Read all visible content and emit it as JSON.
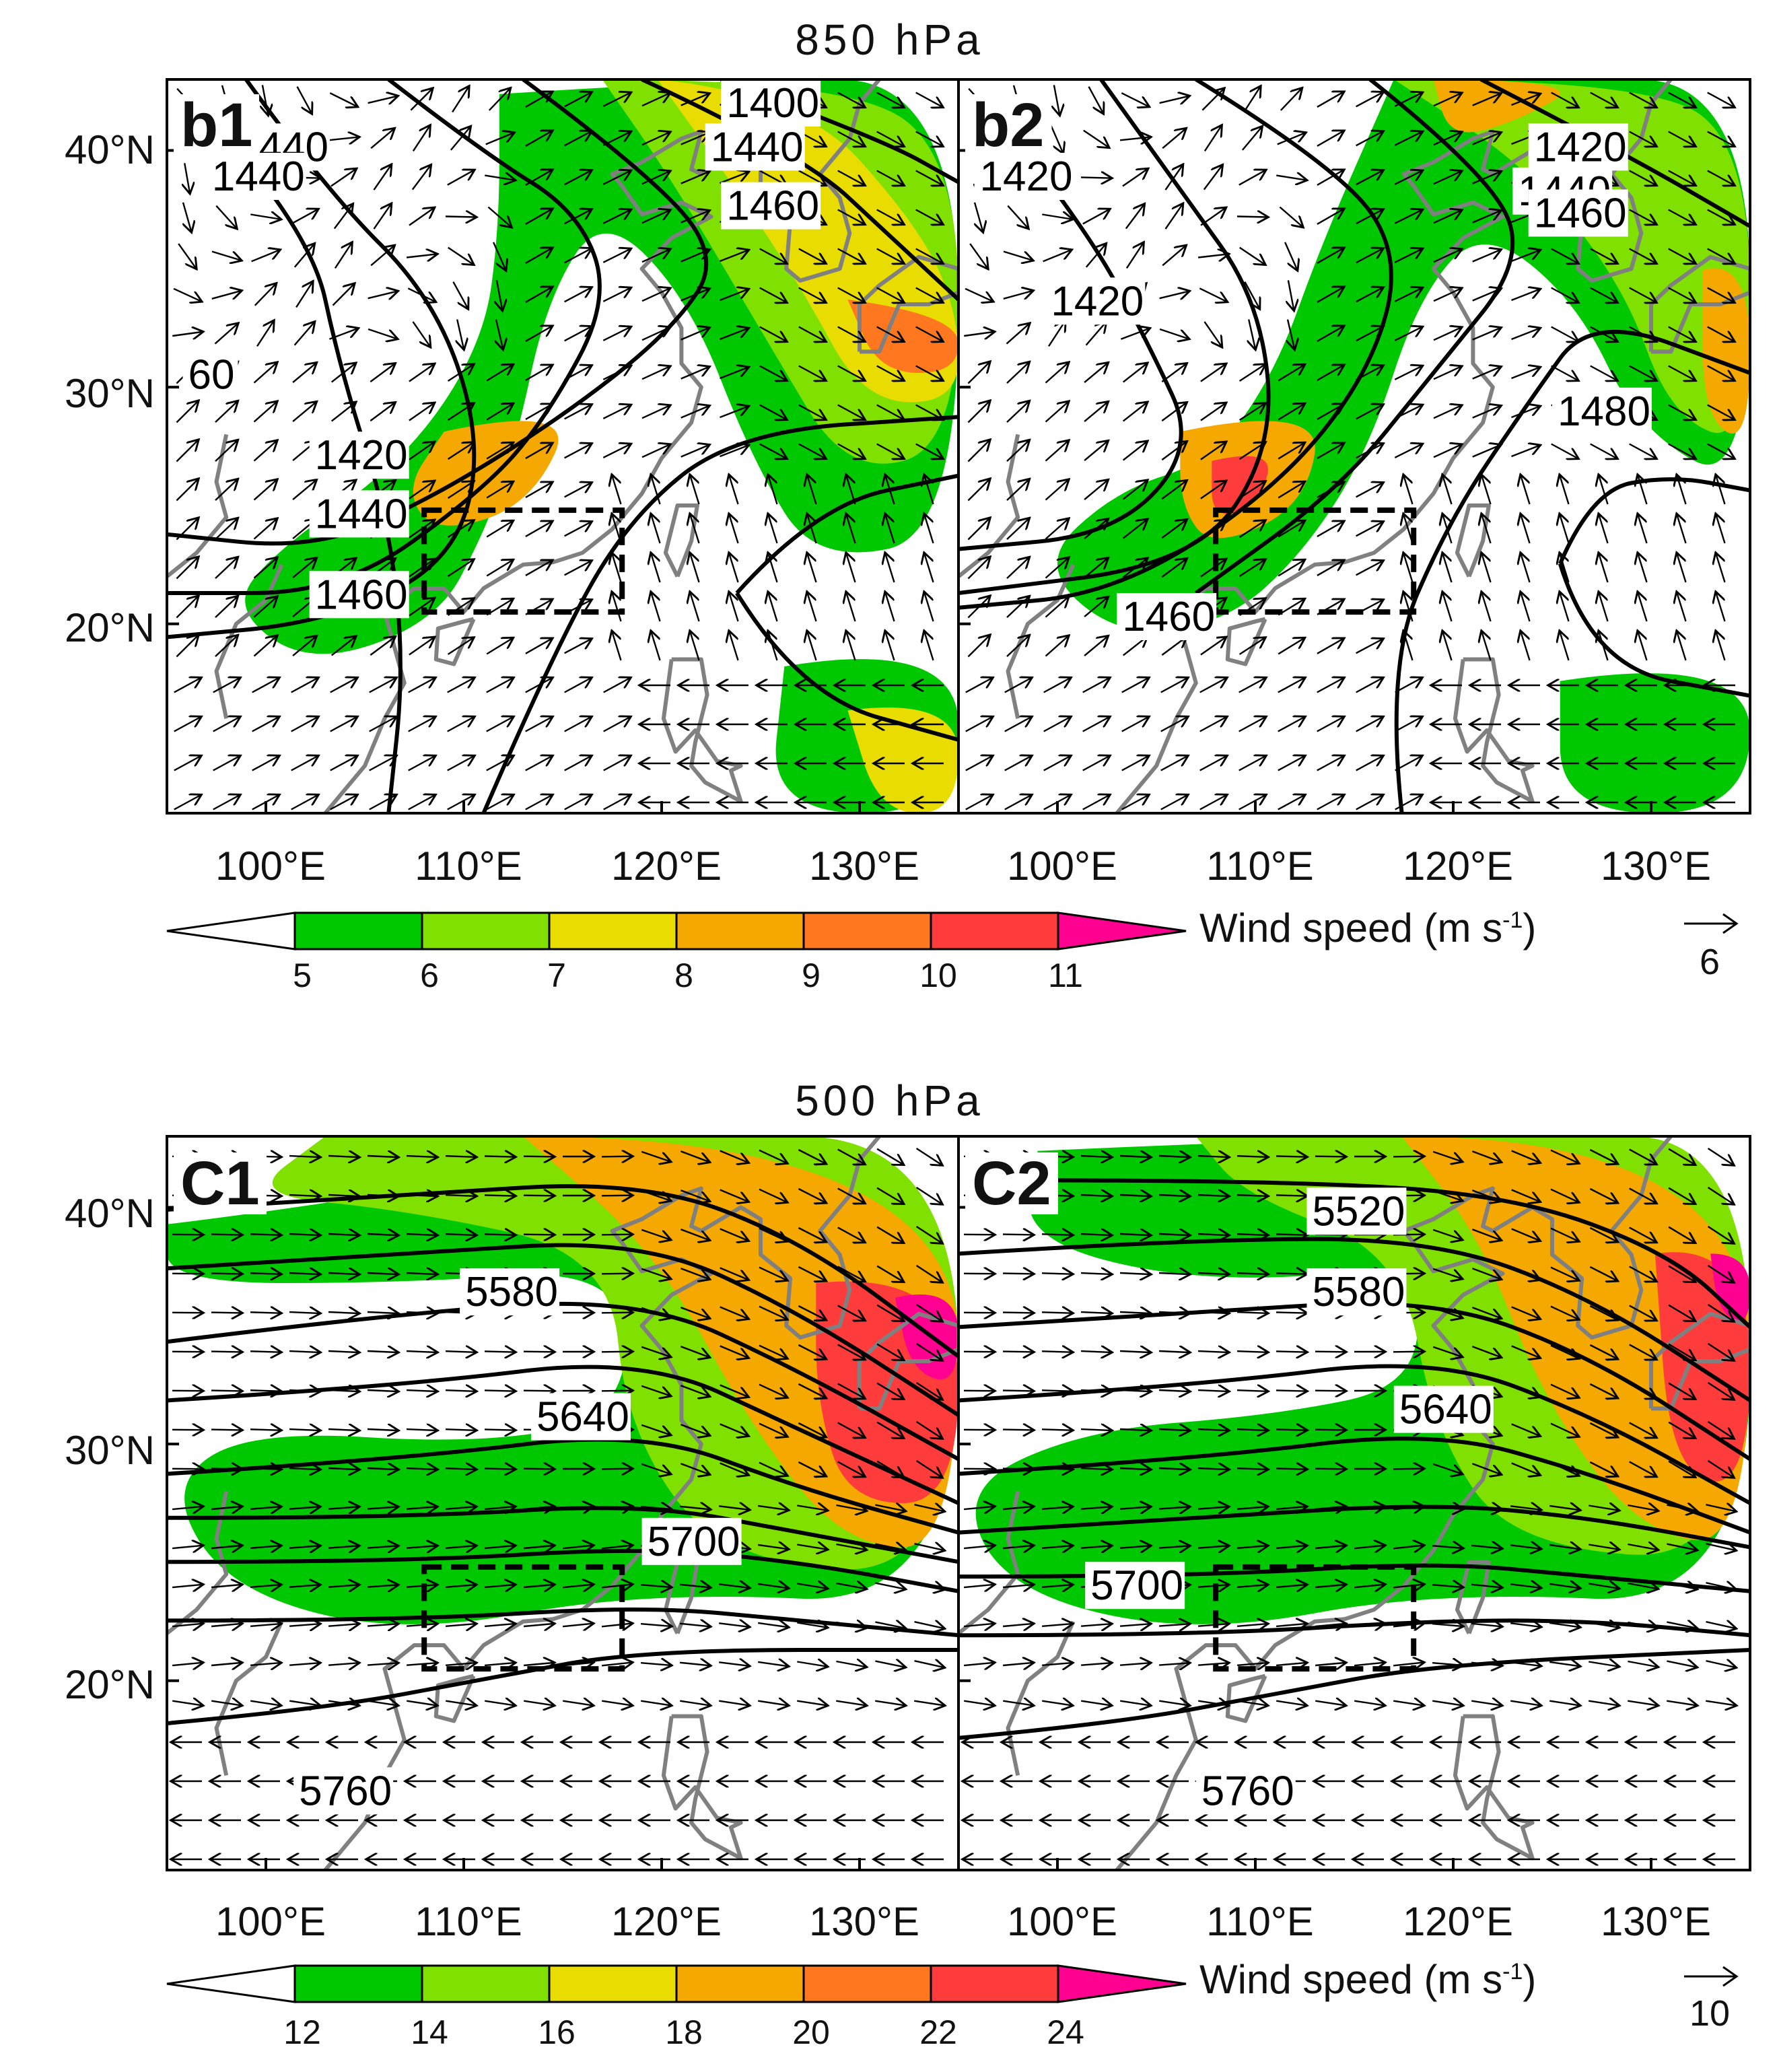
{
  "figure": {
    "top_title": "850  hPa",
    "bottom_title": "500  hPa",
    "lat_labels": [
      "40°N",
      "30°N",
      "20°N"
    ],
    "lon_labels": [
      "100°E",
      "110°E",
      "120°E",
      "130°E"
    ]
  },
  "panels_850": [
    {
      "label": "b1",
      "contour_labels": [
        "1400",
        "1440",
        "1440",
        "1440",
        "1460",
        "60",
        "1420",
        "1440",
        "1460"
      ]
    },
    {
      "label": "b2",
      "contour_labels": [
        "1420",
        "1440",
        "440",
        "1420",
        "1460",
        "1420",
        "1480",
        "1460"
      ]
    }
  ],
  "panels_500": [
    {
      "label": "C1",
      "contour_labels": [
        "5580",
        "5640",
        "5700",
        "5760"
      ]
    },
    {
      "label": "C2",
      "contour_labels": [
        "5520",
        "5580",
        "5640",
        "5700",
        "5760"
      ]
    }
  ],
  "colorbar_850": {
    "title": "Wind speed (m s",
    "superscript": "-1",
    "close": ")",
    "ticks": [
      "5",
      "6",
      "7",
      "8",
      "9",
      "10",
      "11"
    ],
    "reference_vector": "6"
  },
  "colorbar_500": {
    "title": "Wind speed (m s",
    "superscript": "-1",
    "close": ")",
    "ticks": [
      "12",
      "14",
      "16",
      "18",
      "20",
      "22",
      "24"
    ],
    "reference_vector": "10"
  },
  "colors": {
    "levels": [
      "#ffffff",
      "#00c800",
      "#80e000",
      "#e8dc00",
      "#f5a800",
      "#ff7820",
      "#ff3c3c",
      "#ff0090"
    ],
    "contour": "#000000",
    "coastline": "#808080"
  },
  "map_domain": {
    "lon_range": [
      95,
      135
    ],
    "lat_range": [
      12,
      43
    ]
  },
  "study_box": {
    "lon": [
      108,
      118
    ],
    "lat": [
      20.5,
      24.8
    ]
  }
}
